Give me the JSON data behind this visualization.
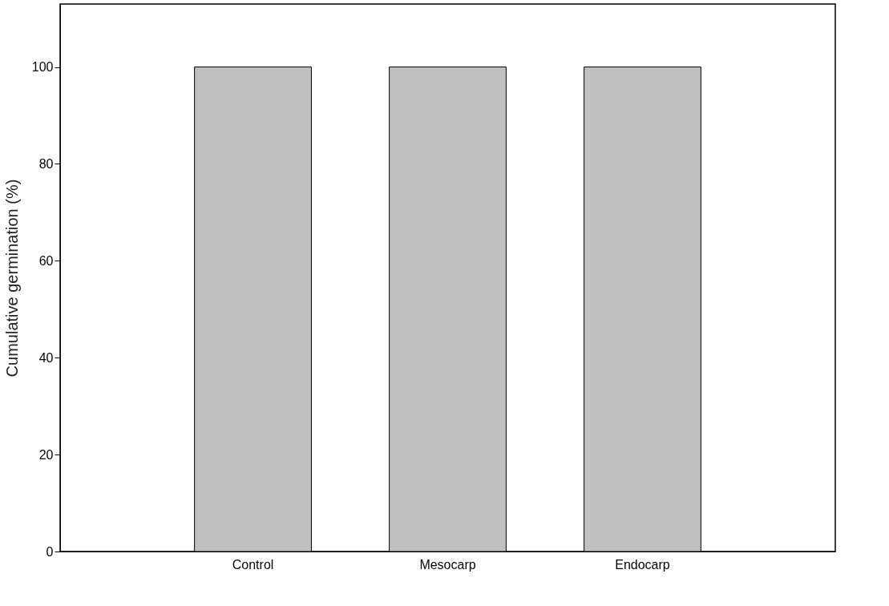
{
  "chart_data": {
    "type": "bar",
    "ylabel": "Cumulative germination (%)",
    "categories": [
      "Control",
      "Mesocarp",
      "Endocarp"
    ],
    "values": [
      100,
      100,
      100
    ],
    "color": "#c0c0c0",
    "ylim": [
      0,
      113
    ],
    "yticks": [
      0,
      20,
      40,
      60,
      80,
      100
    ],
    "grid": false
  }
}
